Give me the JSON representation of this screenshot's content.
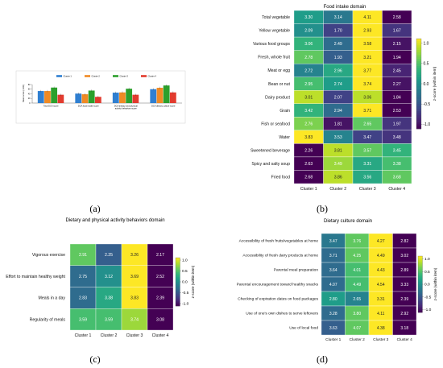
{
  "colors": {
    "cluster1": "#2f7fd1",
    "cluster2": "#f08a24",
    "cluster3": "#2ca02c",
    "cluster4": "#e23b2e"
  },
  "colormap": [
    "#440154",
    "#482878",
    "#3e4989",
    "#31688e",
    "#26828e",
    "#1f9e89",
    "#35b779",
    "#6ece58",
    "#b5de2b",
    "#fde725"
  ],
  "colorbar_label": "z-score (within item)",
  "colorbar_ticks": [
    "1.0",
    "0.5",
    "0.0",
    "-0.5",
    "-1.0"
  ],
  "panels": {
    "a": {
      "label": "(a)"
    },
    "b": {
      "label": "(b)",
      "title": "Food intake domain"
    },
    "c": {
      "label": "(c)",
      "title": "Dietary and physical activity behaviors domain"
    },
    "d": {
      "label": "(d)",
      "title": "Dietary culture domain"
    }
  },
  "chart_data": [
    {
      "type": "bar",
      "categories": [
        "Total DCA score",
        "DCA food intake score",
        "DCA dietary and physical activity behaviors score",
        "DCA dietary culture score"
      ],
      "series": [
        {
          "name": "Cluster 1",
          "values": [
            52,
            41,
            45,
            60
          ]
        },
        {
          "name": "Cluster 2",
          "values": [
            52,
            38,
            46,
            66
          ]
        },
        {
          "name": "Cluster 3",
          "values": [
            67,
            54,
            62,
            76
          ]
        },
        {
          "name": "Cluster 4",
          "values": [
            36,
            27,
            36,
            46
          ]
        }
      ],
      "ylabel": "Mean score (×100)",
      "yticks": [
        "0",
        "20",
        "40",
        "60",
        "80"
      ],
      "ylim": [
        0,
        80
      ],
      "legend": "top"
    },
    {
      "type": "heatmap",
      "title": "Food intake domain",
      "rows": [
        "Total vegetable",
        "Yellow vegetable",
        "Various food groups",
        "Fresh, whole fruit",
        "Meat or egg",
        "Bean or nut",
        "Dairy product",
        "Grain",
        "Fish or seafood",
        "Water",
        "Sweetened beverage",
        "Spicy and salty soup",
        "Fried food"
      ],
      "columns": [
        "Cluster 1",
        "Cluster 2",
        "Cluster 3",
        "Cluster 4"
      ],
      "values": [
        [
          3.3,
          3.14,
          4.11,
          2.58
        ],
        [
          2.09,
          1.7,
          2.93,
          1.67
        ],
        [
          3.06,
          2.49,
          3.58,
          2.15
        ],
        [
          2.78,
          1.93,
          3.21,
          1.94
        ],
        [
          2.72,
          2.96,
          3.77,
          2.45
        ],
        [
          2.95,
          2.74,
          3.74,
          2.27
        ],
        [
          3.01,
          2.07,
          3.06,
          1.84
        ],
        [
          3.42,
          2.94,
          3.71,
          2.53
        ],
        [
          2.76,
          1.81,
          2.65,
          1.97
        ],
        [
          3.83,
          3.53,
          3.47,
          3.48
        ],
        [
          2.26,
          3.81,
          3.57,
          3.45
        ],
        [
          2.63,
          3.49,
          3.31,
          3.38
        ],
        [
          2.68,
          3.86,
          3.56,
          3.68
        ]
      ],
      "z": [
        [
          0.1,
          -0.2,
          1.3,
          -1.1
        ],
        [
          0.0,
          -0.6,
          1.3,
          -0.7
        ],
        [
          0.3,
          -0.3,
          1.1,
          -0.9
        ],
        [
          0.5,
          -0.4,
          1.0,
          -1.0
        ],
        [
          -0.1,
          0.2,
          1.4,
          -0.8
        ],
        [
          0.4,
          0.1,
          1.4,
          -0.9
        ],
        [
          0.8,
          -0.6,
          0.8,
          -1.1
        ],
        [
          0.3,
          -0.3,
          1.3,
          -1.2
        ],
        [
          0.6,
          -0.9,
          0.5,
          -0.7
        ],
        [
          1.5,
          -0.1,
          -0.6,
          -0.7
        ],
        [
          -1.4,
          0.8,
          0.5,
          0.3
        ],
        [
          -1.3,
          0.7,
          0.2,
          0.4
        ],
        [
          -1.4,
          0.8,
          0.2,
          0.5
        ]
      ],
      "colorbar": {
        "label": "z-score (within item)",
        "range": [
          -1.0,
          1.0
        ]
      }
    },
    {
      "type": "heatmap",
      "title": "Dietary and physical activity behaviors domain",
      "rows": [
        "Vigorous exercise",
        "Effort to maintain healthy weight",
        "Meals in a day",
        "Regularity of meals"
      ],
      "columns": [
        "Cluster 1",
        "Cluster 2",
        "Cluster 3",
        "Cluster 4"
      ],
      "values": [
        [
          2.91,
          2.25,
          3.26,
          2.17
        ],
        [
          2.75,
          3.12,
          3.69,
          2.52
        ],
        [
          2.83,
          3.38,
          3.83,
          2.39
        ],
        [
          3.59,
          3.59,
          3.74,
          3.08
        ]
      ],
      "z": [
        [
          0.5,
          -0.4,
          1.3,
          -1.4
        ],
        [
          -0.3,
          0.0,
          1.4,
          -1.3
        ],
        [
          -0.3,
          0.2,
          1.1,
          -1.2
        ],
        [
          0.4,
          0.4,
          0.7,
          -1.5
        ]
      ],
      "colorbar": {
        "label": "z-score (within item)",
        "range": [
          -1.0,
          1.0
        ]
      }
    },
    {
      "type": "heatmap",
      "title": "Dietary culture domain",
      "rows": [
        "Accessibility of fresh fruits/vegetables at home",
        "Accessibility of fresh dairy products at home",
        "Parental meal preparation",
        "Parental encouragement toward healthy snacks",
        "Checking of expiration dates on food packages",
        "Use of one's own dishes to serve leftovers",
        "Use of local food"
      ],
      "columns": [
        "Cluster 1",
        "Cluster 2",
        "Cluster 3",
        "Cluster 4"
      ],
      "values": [
        [
          3.47,
          3.76,
          4.27,
          2.82
        ],
        [
          3.71,
          4.25,
          4.49,
          3.02
        ],
        [
          3.64,
          4.01,
          4.43,
          2.89
        ],
        [
          4.07,
          4.49,
          4.54,
          3.33
        ],
        [
          2.8,
          2.65,
          3.31,
          2.39
        ],
        [
          3.28,
          3.8,
          4.11,
          2.92
        ],
        [
          3.63,
          4.07,
          4.38,
          3.18
        ]
      ],
      "z": [
        [
          -0.2,
          0.5,
          1.4,
          -1.3
        ],
        [
          -0.3,
          0.5,
          1.2,
          -1.3
        ],
        [
          -0.3,
          0.4,
          1.3,
          -1.3
        ],
        [
          -0.3,
          0.4,
          1.1,
          -1.3
        ],
        [
          0.1,
          -0.1,
          1.4,
          -1.1
        ],
        [
          -0.3,
          0.5,
          1.3,
          -1.2
        ],
        [
          -0.4,
          0.5,
          1.3,
          -1.3
        ]
      ],
      "colorbar": {
        "label": "z-score (within item)",
        "range": [
          -1.0,
          1.0
        ]
      }
    }
  ]
}
